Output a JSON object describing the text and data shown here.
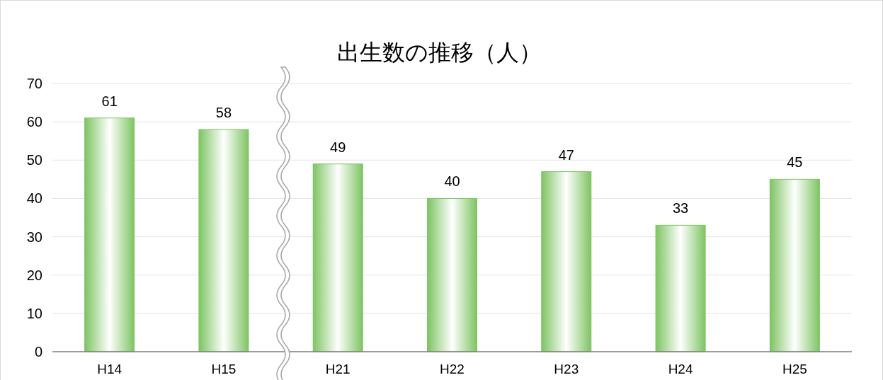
{
  "chart_data": {
    "type": "bar",
    "title": "出生数の推移（人）",
    "categories": [
      "H14",
      "H15",
      "H21",
      "H22",
      "H23",
      "H24",
      "H25"
    ],
    "values": [
      61,
      58,
      49,
      40,
      47,
      33,
      45
    ],
    "color": "#7dc462",
    "ylim": [
      0,
      70
    ],
    "yticks": [
      0,
      10,
      20,
      30,
      40,
      50,
      60,
      70
    ],
    "grid": "y",
    "data_labels": true
  }
}
